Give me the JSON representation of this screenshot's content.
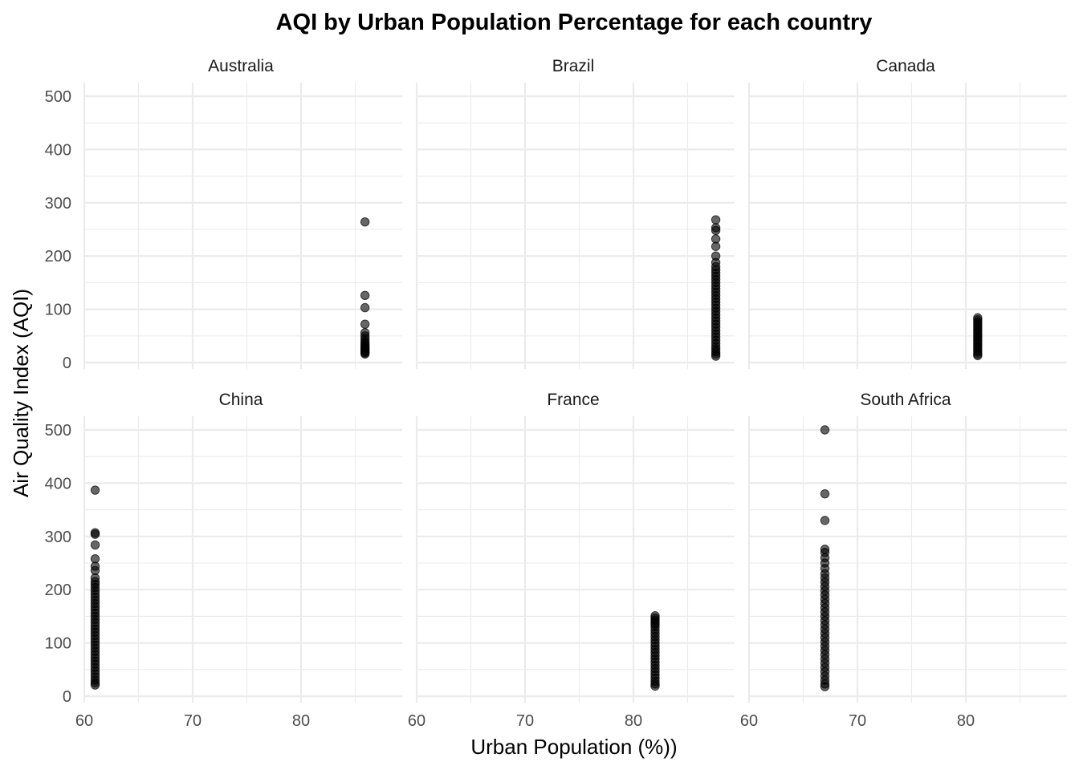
{
  "chart_data": {
    "type": "scatter",
    "title": "AQI by Urban Population Percentage for each country",
    "xlabel": "Urban Population (%))",
    "ylabel": "Air Quality Index (AQI)",
    "xlim": [
      60,
      88.5
    ],
    "ylim": [
      -15,
      525
    ],
    "x_ticks": [
      60,
      70,
      80
    ],
    "y_ticks": [
      0,
      100,
      200,
      300,
      400,
      500
    ],
    "grid": true,
    "legend": "none",
    "point_color": "#000000",
    "point_alpha": 0.6,
    "panels": [
      {
        "name": "Australia",
        "x": 85.9,
        "aqi": [
          264,
          126,
          103,
          72,
          56,
          50,
          45,
          40,
          36,
          33,
          30,
          28,
          26,
          24,
          22,
          20,
          18,
          16
        ]
      },
      {
        "name": "Brazil",
        "x": 87.6,
        "aqi": [
          268,
          253,
          248,
          232,
          218,
          200,
          188,
          180,
          174,
          168,
          162,
          156,
          150,
          144,
          138,
          132,
          126,
          120,
          114,
          108,
          102,
          96,
          90,
          84,
          78,
          72,
          66,
          60,
          54,
          48,
          42,
          36,
          30,
          25,
          20,
          16,
          12
        ]
      },
      {
        "name": "Canada",
        "x": 81.1,
        "aqi": [
          84,
          80,
          76,
          72,
          68,
          64,
          60,
          56,
          52,
          48,
          44,
          40,
          36,
          32,
          28,
          24,
          20,
          16,
          13
        ]
      },
      {
        "name": "China",
        "x": 61.0,
        "aqi": [
          387,
          307,
          304,
          284,
          258,
          244,
          236,
          222,
          215,
          210,
          204,
          198,
          192,
          186,
          180,
          174,
          168,
          162,
          156,
          150,
          144,
          138,
          132,
          126,
          120,
          114,
          108,
          102,
          96,
          90,
          84,
          78,
          72,
          66,
          60,
          54,
          48,
          42,
          36,
          30,
          25,
          21
        ]
      },
      {
        "name": "France",
        "x": 82.0,
        "aqi": [
          151,
          147,
          143,
          139,
          135,
          130,
          124,
          118,
          112,
          106,
          100,
          94,
          88,
          82,
          76,
          70,
          64,
          58,
          52,
          46,
          40,
          34,
          28,
          23,
          19
        ]
      },
      {
        "name": "South Africa",
        "x": 67.0,
        "aqi": [
          500,
          380,
          330,
          276,
          270,
          260,
          250,
          240,
          230,
          222,
          214,
          206,
          198,
          190,
          182,
          174,
          166,
          158,
          150,
          142,
          134,
          126,
          118,
          110,
          102,
          94,
          86,
          78,
          70,
          62,
          54,
          46,
          38,
          30,
          23,
          18
        ]
      }
    ]
  }
}
